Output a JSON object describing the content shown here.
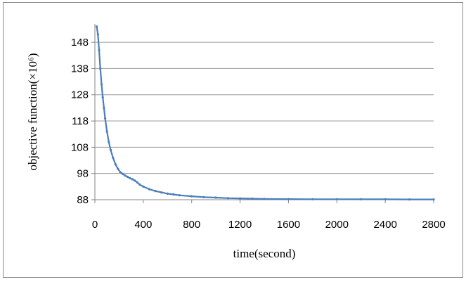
{
  "chart_data": {
    "type": "line",
    "title": "",
    "xlabel": "time(second)",
    "ylabel": "objective function(×10⁶)",
    "xlim": [
      0,
      2800
    ],
    "ylim": [
      88,
      155
    ],
    "x_ticks": [
      0,
      400,
      800,
      1200,
      1600,
      2000,
      2400,
      2800
    ],
    "y_ticks": [
      88,
      98,
      108,
      118,
      128,
      138,
      148
    ],
    "grid": {
      "horizontal": true,
      "vertical": false
    },
    "legend": "none",
    "colors": {
      "series": "#4a7ebb",
      "grid": "#9a9a9a",
      "axis": "#868686"
    },
    "series": [
      {
        "x": [
          15,
          25,
          35,
          45,
          55,
          65,
          75,
          85,
          100,
          115,
          130,
          150,
          170,
          190,
          210,
          230,
          250,
          270,
          290,
          310,
          330,
          350,
          370,
          400,
          450,
          500,
          550,
          600,
          650,
          700,
          800,
          900,
          1000,
          1100,
          1200,
          1300,
          1400,
          1600,
          1800,
          2000,
          2200,
          2400,
          2600,
          2800
        ],
        "values": [
          154,
          151,
          145,
          138,
          132,
          127,
          123,
          119,
          114,
          110,
          107,
          104,
          101.5,
          99.8,
          98.5,
          97.8,
          97.2,
          96.7,
          96.2,
          95.8,
          95.3,
          94.6,
          93.8,
          93.0,
          92.0,
          91.3,
          90.8,
          90.3,
          90.0,
          89.7,
          89.3,
          89.0,
          88.8,
          88.6,
          88.5,
          88.4,
          88.3,
          88.25,
          88.2,
          88.2,
          88.15,
          88.15,
          88.1,
          88.1
        ]
      }
    ]
  }
}
